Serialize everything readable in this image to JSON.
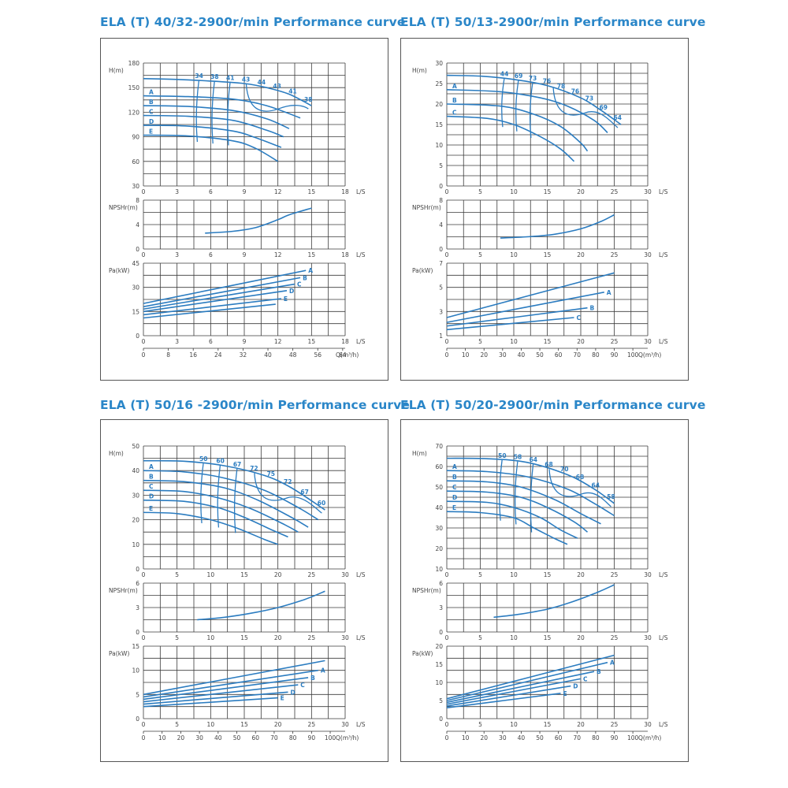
{
  "colors": {
    "title": "#2a86c8",
    "curve": "#2b7cc0",
    "grid": "#3a3a3a"
  },
  "chart_data": [
    {
      "title": "ELA (T) 40/32-2900r/min Performance curve",
      "type": "line",
      "flow_unit": "L/S",
      "q_unit": "Q(m³/h)",
      "x_ticks": [
        "0",
        "3",
        "6",
        "9",
        "12",
        "15",
        "18"
      ],
      "q_ticks": [
        "0",
        "8",
        "16",
        "24",
        "32",
        "40",
        "48",
        "56",
        "64"
      ],
      "head": {
        "ylabel": "H(m)",
        "ylim": [
          30,
          180
        ],
        "y_ticks": [
          "30",
          "60",
          "90",
          "120",
          "150",
          "180"
        ],
        "series": [
          {
            "name": "A",
            "x": [
              0,
              4,
              8,
              11,
              14
            ],
            "values": [
              140,
              139,
              136,
              128,
              113
            ]
          },
          {
            "name": "B",
            "x": [
              0,
              4,
              8,
              11,
              13
            ],
            "values": [
              128,
              127,
              122,
              112,
              100
            ]
          },
          {
            "name": "C",
            "x": [
              0,
              4,
              8,
              11,
              12.5
            ],
            "values": [
              116,
              115,
              110,
              98,
              90
            ]
          },
          {
            "name": "D",
            "x": [
              0,
              4,
              8,
              10,
              12.3
            ],
            "values": [
              104,
              103,
              97,
              89,
              77
            ]
          },
          {
            "name": "E",
            "x": [
              0,
              4,
              8,
              10,
              12
            ],
            "values": [
              92,
              91,
              85,
              76,
              60
            ]
          }
        ],
        "max_curve": {
          "x": [
            0,
            3,
            6,
            9,
            11,
            13,
            15
          ],
          "values": [
            161,
            160,
            158,
            155,
            150,
            142,
            128
          ]
        },
        "efficiency_labels": [
          "34",
          "38",
          "41",
          "43",
          "44",
          "43",
          "41",
          "38"
        ]
      },
      "npsh": {
        "ylabel": "NPSHr(m)",
        "ylim": [
          0,
          8
        ],
        "y_ticks": [
          "0",
          "4",
          "8"
        ],
        "series": [
          {
            "x": [
              5.5,
              8,
              10,
              12,
              13,
              15
            ],
            "values": [
              2.6,
              2.9,
              3.5,
              4.8,
              5.6,
              6.7
            ]
          }
        ]
      },
      "power": {
        "ylabel": "Pa(kW)",
        "ylim": [
          0,
          45
        ],
        "y_ticks": [
          "0",
          "15",
          "30",
          "45"
        ],
        "series": [
          {
            "name": "A",
            "x": [
              0,
              14.5
            ],
            "values": [
              20,
              40.5
            ]
          },
          {
            "name": "B",
            "x": [
              0,
              14
            ],
            "values": [
              18,
              36
            ]
          },
          {
            "name": "C",
            "x": [
              0,
              13.5
            ],
            "values": [
              16.5,
              32
            ]
          },
          {
            "name": "D",
            "x": [
              0,
              12.8
            ],
            "values": [
              15,
              28
            ]
          },
          {
            "name": "E",
            "x": [
              0,
              12.3
            ],
            "values": [
              13,
              23
            ]
          },
          {
            "name": "",
            "x": [
              0,
              11.8
            ],
            "values": [
              11,
              19.5
            ]
          }
        ]
      }
    },
    {
      "title": "ELA (T) 50/13-2900r/min Performance curve",
      "type": "line",
      "flow_unit": "L/S",
      "q_unit": "Q(m³/h)",
      "x_ticks": [
        "0",
        "5",
        "10",
        "15",
        "20",
        "25",
        "30"
      ],
      "q_ticks": [
        "0",
        "10",
        "20",
        "30",
        "40",
        "50",
        "60",
        "70",
        "80",
        "90",
        "100"
      ],
      "head": {
        "ylabel": "H(m)",
        "ylim": [
          0,
          30
        ],
        "y_ticks": [
          "0",
          "5",
          "10",
          "15",
          "20",
          "25",
          "30"
        ],
        "series": [
          {
            "name": "A",
            "x": [
              0,
              8,
              14,
              18,
              22,
              24
            ],
            "values": [
              23.5,
              23,
              21.5,
              19.5,
              16,
              13
            ]
          },
          {
            "name": "B",
            "x": [
              0,
              8,
              13,
              17,
              20,
              21
            ],
            "values": [
              20,
              19.5,
              17.5,
              14.5,
              10.5,
              8.5
            ]
          },
          {
            "name": "C",
            "x": [
              0,
              6,
              10,
              14,
              17,
              19
            ],
            "values": [
              17,
              16.5,
              15,
              12,
              9,
              6
            ]
          }
        ],
        "max_curve": {
          "x": [
            0,
            5,
            10,
            15,
            20,
            23,
            26
          ],
          "values": [
            27,
            26.8,
            26,
            24.5,
            21.5,
            18.5,
            15
          ]
        },
        "efficiency_labels": [
          "44",
          "69",
          "73",
          "76",
          "78",
          "76",
          "73",
          "69",
          "64"
        ]
      },
      "npsh": {
        "ylabel": "NPSHr(m)",
        "ylim": [
          0,
          8
        ],
        "y_ticks": [
          "0",
          "4",
          "8"
        ],
        "series": [
          {
            "x": [
              8,
              12,
              16,
              20,
              23,
              25
            ],
            "values": [
              1.8,
              2.0,
              2.4,
              3.3,
              4.5,
              5.6
            ]
          }
        ]
      },
      "power": {
        "ylabel": "Pa(kW)",
        "ylim": [
          1,
          7
        ],
        "y_ticks": [
          "1",
          "3",
          "5",
          "7"
        ],
        "series": [
          {
            "name": "",
            "x": [
              0,
              25
            ],
            "values": [
              2.5,
              6.2
            ]
          },
          {
            "name": "A",
            "x": [
              0,
              23.5
            ],
            "values": [
              2.1,
              4.6
            ]
          },
          {
            "name": "B",
            "x": [
              0,
              21
            ],
            "values": [
              1.8,
              3.3
            ]
          },
          {
            "name": "C",
            "x": [
              0,
              19
            ],
            "values": [
              1.5,
              2.5
            ]
          }
        ]
      }
    },
    {
      "title": "ELA (T) 50/16 -2900r/min Performance curve",
      "type": "line",
      "flow_unit": "L/S",
      "q_unit": "Q(m³/h)",
      "x_ticks": [
        "0",
        "5",
        "10",
        "15",
        "20",
        "25",
        "30"
      ],
      "q_ticks": [
        "0",
        "10",
        "20",
        "30",
        "40",
        "50",
        "60",
        "70",
        "80",
        "90",
        "100"
      ],
      "head": {
        "ylabel": "H(m)",
        "ylim": [
          0,
          50
        ],
        "y_ticks": [
          "0",
          "10",
          "20",
          "30",
          "40",
          "50"
        ],
        "series": [
          {
            "name": "A",
            "x": [
              0,
              6,
              12,
              18,
              23,
              26
            ],
            "values": [
              40,
              39.5,
              37,
              32,
              25,
              20
            ]
          },
          {
            "name": "B",
            "x": [
              0,
              6,
              12,
              17,
              22,
              24.5
            ],
            "values": [
              36,
              35.5,
              33,
              28,
              21,
              17
            ]
          },
          {
            "name": "C",
            "x": [
              0,
              6,
              11,
              16,
              21,
              23
            ],
            "values": [
              32,
              31.5,
              29,
              24.5,
              18,
              15
            ]
          },
          {
            "name": "D",
            "x": [
              0,
              6,
              11,
              15,
              19,
              21.5
            ],
            "values": [
              28,
              27.5,
              25,
              21,
              16,
              13
            ]
          },
          {
            "name": "E",
            "x": [
              0,
              5,
              10,
              14,
              18,
              20
            ],
            "values": [
              23,
              22.5,
              20,
              16.5,
              12,
              10
            ]
          }
        ],
        "max_curve": {
          "x": [
            0,
            6,
            12,
            18,
            22,
            27
          ],
          "values": [
            44,
            43.8,
            42,
            38,
            33,
            24
          ]
        },
        "efficiency_labels": [
          "50",
          "60",
          "67",
          "72",
          "75",
          "72",
          "67",
          "60"
        ]
      },
      "npsh": {
        "ylabel": "NPSHr(m)",
        "ylim": [
          0,
          6
        ],
        "y_ticks": [
          "0",
          "3",
          "6"
        ],
        "series": [
          {
            "x": [
              8,
              12,
              16,
              20,
              24,
              27
            ],
            "values": [
              1.5,
              1.8,
              2.3,
              3.0,
              4.0,
              5.0
            ]
          }
        ]
      },
      "power": {
        "ylabel": "Pa(kW)",
        "ylim": [
          0,
          15
        ],
        "y_ticks": [
          "0",
          "5",
          "10",
          "15"
        ],
        "series": [
          {
            "name": "",
            "x": [
              0,
              27
            ],
            "values": [
              5,
              12
            ]
          },
          {
            "name": "A",
            "x": [
              0,
              26
            ],
            "values": [
              4.5,
              10
            ]
          },
          {
            "name": "B",
            "x": [
              0,
              24.5
            ],
            "values": [
              4,
              8.5
            ]
          },
          {
            "name": "C",
            "x": [
              0,
              23
            ],
            "values": [
              3.5,
              7
            ]
          },
          {
            "name": "D",
            "x": [
              0,
              21.5
            ],
            "values": [
              3,
              5.5
            ]
          },
          {
            "name": "E",
            "x": [
              0,
              20
            ],
            "values": [
              2.5,
              4.3
            ]
          }
        ]
      }
    },
    {
      "title": "ELA (T) 50/20-2900r/min Performance curve",
      "type": "line",
      "flow_unit": "L/S",
      "q_unit": "Q(m³/h)",
      "x_ticks": [
        "0",
        "5",
        "10",
        "15",
        "20",
        "25",
        "30"
      ],
      "q_ticks": [
        "0",
        "10",
        "20",
        "30",
        "40",
        "50",
        "60",
        "70",
        "80",
        "90",
        "100"
      ],
      "head": {
        "ylabel": "H(m)",
        "ylim": [
          10,
          70
        ],
        "y_ticks": [
          "10",
          "20",
          "30",
          "40",
          "50",
          "60",
          "70"
        ],
        "series": [
          {
            "name": "A",
            "x": [
              0,
              6,
              12,
              18,
              22,
              25
            ],
            "values": [
              58,
              57.5,
              55,
              49,
              42,
              36
            ]
          },
          {
            "name": "B",
            "x": [
              0,
              6,
              11,
              16,
              20,
              23
            ],
            "values": [
              53,
              52.5,
              50,
              44,
              37,
              32
            ]
          },
          {
            "name": "C",
            "x": [
              0,
              6,
              11,
              15,
              19,
              21
            ],
            "values": [
              48,
              47.5,
              45,
              40,
              33,
              28
            ]
          },
          {
            "name": "D",
            "x": [
              0,
              6,
              10,
              14,
              17,
              19.5
            ],
            "values": [
              43,
              42.5,
              40,
              35,
              29,
              25
            ]
          },
          {
            "name": "E",
            "x": [
              0,
              5,
              10,
              13,
              16,
              18
            ],
            "values": [
              38,
              37.5,
              35,
              30,
              25,
              22
            ]
          }
        ],
        "max_curve": {
          "x": [
            0,
            6,
            12,
            18,
            22,
            25
          ],
          "values": [
            64,
            63.8,
            62,
            56,
            49,
            42
          ]
        },
        "efficiency_labels": [
          "50",
          "58",
          "64",
          "68",
          "70",
          "68",
          "64",
          "58"
        ]
      },
      "npsh": {
        "ylabel": "NPSHr(m)",
        "ylim": [
          0,
          6
        ],
        "y_ticks": [
          "0",
          "3",
          "6"
        ],
        "series": [
          {
            "x": [
              7,
              11,
              15,
              18,
              22,
              25
            ],
            "values": [
              1.8,
              2.2,
              2.8,
              3.5,
              4.7,
              5.8
            ]
          }
        ]
      },
      "power": {
        "ylabel": "Pa(kW)",
        "ylim": [
          0,
          20
        ],
        "y_ticks": [
          "0",
          "5",
          "10",
          "15",
          "20"
        ],
        "series": [
          {
            "name": "",
            "x": [
              0,
              25
            ],
            "values": [
              5.5,
              17.5
            ]
          },
          {
            "name": "A",
            "x": [
              0,
              24
            ],
            "values": [
              5,
              15.5
            ]
          },
          {
            "name": "B",
            "x": [
              0,
              22
            ],
            "values": [
              4.5,
              13
            ]
          },
          {
            "name": "C",
            "x": [
              0,
              20
            ],
            "values": [
              4,
              11
            ]
          },
          {
            "name": "D",
            "x": [
              0,
              18.5
            ],
            "values": [
              3.5,
              9
            ]
          },
          {
            "name": "E",
            "x": [
              0,
              17
            ],
            "values": [
              3,
              7
            ]
          }
        ]
      }
    }
  ]
}
